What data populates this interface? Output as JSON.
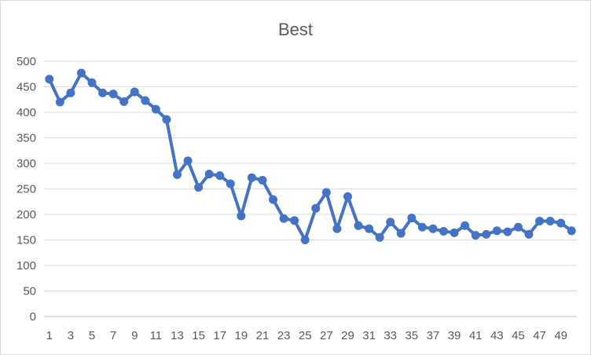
{
  "chart_data": {
    "type": "line",
    "title": "Best",
    "xlabel": "",
    "ylabel": "",
    "ylim": [
      0,
      500
    ],
    "y_ticks": [
      0,
      50,
      100,
      150,
      200,
      250,
      300,
      350,
      400,
      450,
      500
    ],
    "x_tick_labels": [
      1,
      3,
      5,
      7,
      9,
      11,
      13,
      15,
      17,
      19,
      21,
      23,
      25,
      27,
      29,
      31,
      33,
      35,
      37,
      39,
      41,
      43,
      45,
      47,
      49
    ],
    "grid": "horizontal",
    "legend": "none",
    "x": [
      1,
      2,
      3,
      4,
      5,
      6,
      7,
      8,
      9,
      10,
      11,
      12,
      13,
      14,
      15,
      16,
      17,
      18,
      19,
      20,
      21,
      22,
      23,
      24,
      25,
      26,
      27,
      28,
      29,
      30,
      31,
      32,
      33,
      34,
      35,
      36,
      37,
      38,
      39,
      40,
      41,
      42,
      43,
      44,
      45,
      46,
      47,
      48,
      49,
      50
    ],
    "series": [
      {
        "color": "#4472c4",
        "values": [
          465,
          420,
          438,
          477,
          458,
          438,
          436,
          421,
          440,
          423,
          406,
          386,
          278,
          305,
          253,
          279,
          276,
          260,
          197,
          272,
          267,
          229,
          192,
          188,
          150,
          212,
          243,
          172,
          235,
          178,
          172,
          155,
          185,
          163,
          193,
          175,
          172,
          167,
          164,
          178,
          159,
          161,
          168,
          166,
          175,
          161,
          187,
          187,
          183,
          168
        ]
      }
    ]
  }
}
